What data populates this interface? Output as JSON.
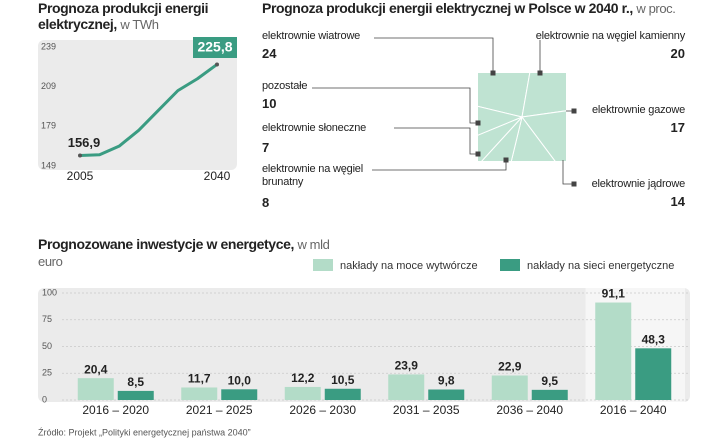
{
  "chart_data": [
    {
      "type": "line",
      "title": "Prognoza produkcji energii elektrycznej,",
      "unit": "w TWh",
      "x": [
        2005,
        2010,
        2015,
        2020,
        2025,
        2030,
        2035,
        2040
      ],
      "xlim": [
        2005,
        2040
      ],
      "xticks": [
        2005,
        2040
      ],
      "ylim": [
        149,
        239
      ],
      "yticks": [
        149,
        179,
        209,
        239
      ],
      "series": [
        {
          "color": "#3a9c82",
          "values": [
            156.9,
            157.5,
            164,
            176,
            191,
            206,
            215,
            225.8
          ],
          "value_labels": [
            "156,9",
            null,
            null,
            null,
            null,
            null,
            null,
            "225,8"
          ]
        }
      ]
    },
    {
      "type": "pie",
      "title": "Prognoza produkcji energii elektrycznej w Polsce w 2040 r.,",
      "unit": "w proc.",
      "color": "#bfe3d2",
      "categories": [
        "elektrownie wiatrowe",
        "elektrownie na węgiel kamienny",
        "elektrownie gazowe",
        "elektrownie jądrowe",
        "elektrownie na węgiel brunatny",
        "elektrownie słoneczne",
        "pozostałe"
      ],
      "values": [
        24,
        20,
        17,
        14,
        8,
        7,
        10
      ]
    },
    {
      "type": "grouped-bar",
      "title": "Prognozowane inwestycje w energetyce,",
      "unit": "w mld euro",
      "categories": [
        "2016 – 2020",
        "2021 – 2025",
        "2026 – 2030",
        "2031 – 2035",
        "2036 – 2040",
        "2016 – 2040"
      ],
      "ylim": [
        0,
        100
      ],
      "yticks": [
        0,
        25,
        50,
        75,
        100
      ],
      "grid": true,
      "series": [
        {
          "name": "nakłady na moce wytwórcze",
          "color": "#b3dcc8",
          "values": [
            20.4,
            11.7,
            12.2,
            23.9,
            22.9,
            91.1
          ],
          "value_labels": [
            "20,4",
            "11,7",
            "12,2",
            "23,9",
            "22,9",
            "91,1"
          ]
        },
        {
          "name": "nakłady na sieci energetyczne",
          "color": "#3a9c82",
          "values": [
            8.5,
            10.0,
            10.5,
            9.8,
            9.5,
            48.3
          ],
          "value_labels": [
            "8,5",
            "10,0",
            "10,5",
            "9,8",
            "9,5",
            "48,3"
          ]
        }
      ],
      "source": "Źródło: Projekt „Polityki energetycznej państwa 2040”"
    }
  ]
}
